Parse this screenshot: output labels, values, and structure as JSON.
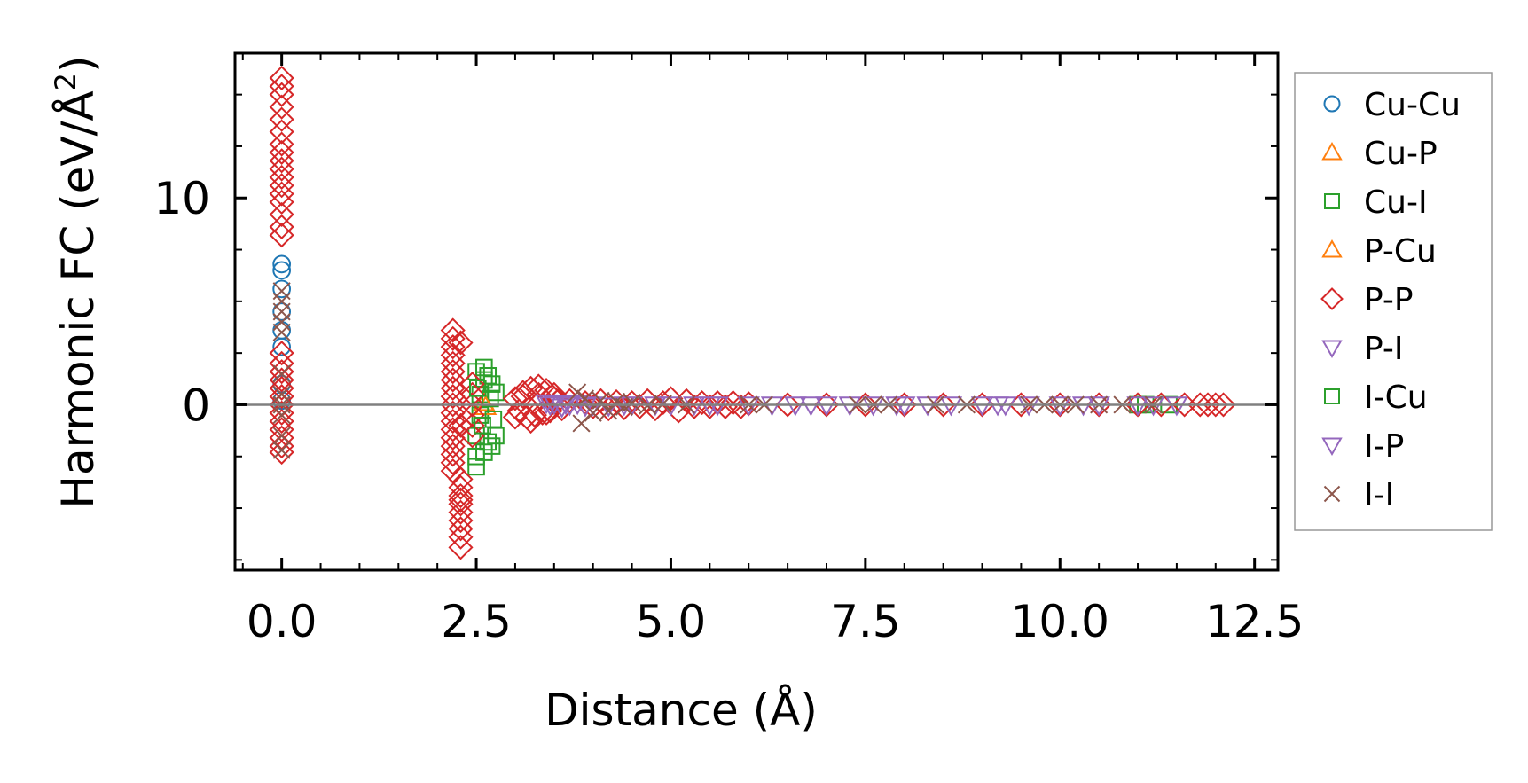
{
  "chart_data": {
    "type": "scatter",
    "title": "",
    "xlabel": "Distance (Å)",
    "ylabel_main": "Harmonic FC (eV/Å",
    "ylabel_sup": "2",
    "ylabel_close": ")",
    "xlim": [
      -0.6,
      12.8
    ],
    "ylim": [
      -8.0,
      17.0
    ],
    "x_ticks": [
      0.0,
      2.5,
      5.0,
      7.5,
      10.0,
      12.5
    ],
    "x_tick_labels": [
      "0.0",
      "2.5",
      "5.0",
      "7.5",
      "10.0",
      "12.5"
    ],
    "y_ticks": [
      0,
      10
    ],
    "y_tick_labels": [
      "0",
      "10"
    ],
    "grid": false,
    "zero_line": true,
    "legend_position": "right, outside plot",
    "series": [
      {
        "name": "Cu-Cu",
        "marker": "circle",
        "color": "#1f77b4",
        "x": [
          0,
          0,
          0,
          0,
          0,
          0,
          0,
          0
        ],
        "y": [
          6.8,
          6.5,
          5.6,
          4.5,
          3.6,
          2.8,
          1.0,
          0.2
        ]
      },
      {
        "name": "Cu-P",
        "marker": "triangle-up",
        "color": "#ff7f0e",
        "x": [
          2.6
        ],
        "y": [
          0.1
        ]
      },
      {
        "name": "Cu-I",
        "marker": "square",
        "color": "#2ca02c",
        "x": [
          2.5,
          2.5,
          2.5,
          2.55,
          2.55,
          2.6,
          2.6,
          2.65,
          2.65,
          2.7,
          2.7,
          2.75,
          2.75,
          2.5,
          2.6,
          11.0,
          11.1,
          11.4
        ],
        "y": [
          -3.0,
          -2.5,
          -1.5,
          -0.5,
          0.5,
          1.2,
          1.8,
          1.4,
          -1.8,
          1.0,
          -2.0,
          0.6,
          -1.5,
          1.6,
          -2.3,
          0.0,
          0.0,
          0.0
        ]
      },
      {
        "name": "P-Cu",
        "marker": "triangle-up",
        "color": "#ff7f0e",
        "x": [
          2.62
        ],
        "y": [
          -0.1
        ]
      },
      {
        "name": "P-P",
        "marker": "diamond",
        "color": "#d62728",
        "x": [
          0,
          0,
          0,
          0,
          0,
          0,
          0,
          0,
          0,
          0,
          0,
          0,
          0,
          0,
          0,
          0,
          0,
          0,
          0,
          0,
          0,
          0,
          0,
          0,
          0,
          0,
          0,
          0,
          0,
          0,
          2.2,
          2.2,
          2.2,
          2.2,
          2.2,
          2.2,
          2.2,
          2.2,
          2.2,
          2.2,
          2.2,
          2.2,
          2.2,
          2.2,
          2.2,
          2.2,
          2.2,
          2.2,
          2.3,
          2.3,
          2.3,
          2.3,
          2.3,
          2.3,
          2.3,
          2.3,
          2.3,
          2.3,
          2.3,
          2.3,
          2.45,
          2.45,
          2.45,
          2.45,
          2.45,
          2.45,
          3.0,
          3.05,
          3.1,
          3.15,
          3.2,
          3.25,
          3.3,
          3.35,
          3.4,
          3.45,
          3.5,
          3.55,
          3.0,
          3.1,
          3.2,
          3.3,
          3.4,
          3.5,
          3.6,
          3.7,
          3.9,
          4.0,
          4.1,
          4.2,
          4.3,
          4.4,
          4.5,
          4.6,
          4.7,
          4.8,
          4.9,
          5.0,
          5.1,
          5.2,
          5.3,
          5.4,
          5.5,
          5.6,
          5.7,
          5.8,
          5.9,
          6.0,
          6.5,
          7.0,
          7.5,
          8.0,
          8.5,
          9.0,
          9.5,
          10.0,
          10.5,
          11.0,
          11.3,
          11.6,
          11.8,
          11.9,
          12.0,
          12.1
        ],
        "y": [
          15.8,
          15.4,
          15.0,
          14.4,
          13.8,
          13.2,
          12.6,
          12.2,
          11.8,
          11.4,
          11.0,
          10.6,
          10.2,
          9.8,
          9.2,
          8.6,
          8.2,
          2.5,
          2.0,
          1.6,
          1.2,
          0.8,
          0.4,
          0.0,
          -0.4,
          -0.8,
          -1.2,
          -1.6,
          -2.0,
          -2.3,
          3.6,
          3.2,
          2.8,
          2.4,
          2.0,
          1.6,
          1.2,
          0.8,
          0.4,
          0.0,
          -0.4,
          -0.8,
          -1.2,
          -1.6,
          -2.0,
          -2.4,
          -2.8,
          -3.2,
          -3.6,
          -4.0,
          -4.4,
          -4.8,
          -5.2,
          -5.6,
          -6.0,
          -6.4,
          -6.9,
          3.0,
          -1.0,
          -4.6,
          1.0,
          0.5,
          0.0,
          -0.5,
          -1.0,
          -1.5,
          0.3,
          -0.3,
          0.6,
          -0.6,
          0.8,
          -0.5,
          0.9,
          -0.4,
          0.7,
          -0.3,
          0.5,
          0.2,
          -0.6,
          0.4,
          -0.8,
          0.5,
          -0.4,
          0.3,
          -0.2,
          0.2,
          0.1,
          -0.1,
          0.2,
          -0.2,
          0.15,
          -0.15,
          0.1,
          -0.1,
          0.2,
          -0.2,
          0.1,
          0.3,
          -0.3,
          0.2,
          -0.1,
          0.1,
          -0.1,
          0.1,
          -0.1,
          0.1,
          -0.1,
          0.05,
          0.0,
          0.0,
          0.0,
          0.0,
          0.0,
          0.0,
          0.0,
          0.0,
          0.0,
          0.0,
          0.0,
          0.0,
          0.0,
          0.0,
          0.0,
          0.0
        ]
      },
      {
        "name": "P-I",
        "marker": "triangle-down",
        "color": "#9467bd",
        "x": [
          3.4,
          3.5,
          3.6,
          3.7,
          3.8,
          4.0,
          4.2,
          4.5,
          4.8,
          5.0,
          5.3,
          5.6,
          6.0,
          6.3,
          6.6,
          7.0,
          7.3,
          7.6,
          8.0,
          8.3,
          8.6,
          9.0,
          9.3,
          9.6,
          10.0,
          10.5,
          11.0,
          11.5
        ],
        "y": [
          0.1,
          0.05,
          -0.1,
          0.0,
          0.05,
          0.0,
          -0.05,
          0.0,
          0.0,
          0.0,
          0.0,
          0.0,
          0.0,
          0.0,
          0.0,
          0.0,
          0.0,
          0.0,
          0.0,
          0.0,
          0.0,
          0.0,
          0.0,
          0.0,
          0.0,
          0.0,
          0.0,
          0.0
        ]
      },
      {
        "name": "I-Cu",
        "marker": "square",
        "color": "#2ca02c",
        "x": [
          2.52,
          2.58,
          2.68,
          2.72
        ],
        "y": [
          0.8,
          -1.0,
          0.3,
          -0.7
        ]
      },
      {
        "name": "I-P",
        "marker": "triangle-down",
        "color": "#9467bd",
        "x": [
          3.45,
          3.65,
          3.9,
          4.4,
          5.5,
          6.8,
          7.9,
          9.2,
          10.3,
          11.2
        ],
        "y": [
          0.0,
          0.05,
          -0.05,
          0.0,
          0.0,
          0.0,
          0.0,
          0.0,
          0.0,
          0.0
        ]
      },
      {
        "name": "I-I",
        "marker": "x",
        "color": "#8c564b",
        "x": [
          0,
          0,
          0,
          0,
          0,
          0,
          0,
          0,
          0,
          0,
          0,
          3.8,
          3.85,
          3.9,
          4.0,
          4.1,
          4.2,
          4.3,
          4.4,
          4.5,
          4.7,
          4.9,
          5.2,
          6.0,
          6.2,
          7.4,
          7.6,
          7.8,
          8.4,
          8.8,
          9.6,
          9.8,
          10.0,
          10.2,
          10.5,
          10.8,
          11.2
        ],
        "y": [
          5.5,
          5.0,
          4.5,
          4.0,
          3.5,
          1.5,
          0.5,
          0.0,
          -0.5,
          -1.5,
          -2.2,
          0.6,
          -0.9,
          0.3,
          -0.4,
          0.2,
          -0.3,
          0.15,
          -0.1,
          0.1,
          -0.05,
          0.05,
          0.0,
          0.0,
          0.0,
          0.0,
          0.0,
          0.0,
          0.0,
          0.0,
          0.0,
          0.0,
          0.0,
          0.0,
          0.0,
          0.0,
          0.0
        ]
      }
    ]
  }
}
